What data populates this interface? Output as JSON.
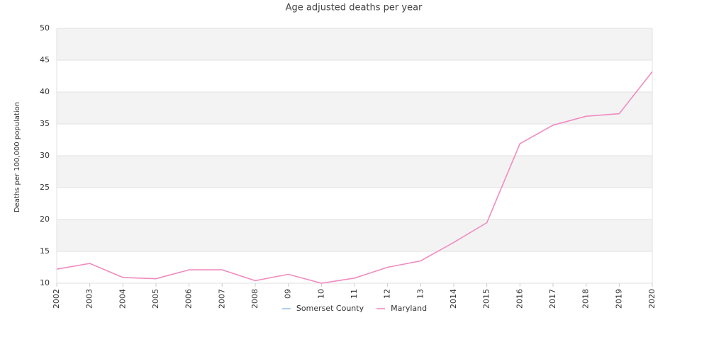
{
  "chart_data": {
    "type": "line",
    "title": "Age adjusted deaths per year",
    "y_label": "Deaths per 100,000 population",
    "categories": [
      "2002",
      "2003",
      "2004",
      "2005",
      "2006",
      "2007",
      "2008",
      "09",
      "10",
      "11",
      "12",
      "13",
      "2014",
      "2015",
      "2016",
      "2017",
      "2018",
      "2019",
      "2020"
    ],
    "series": [
      {
        "name": "Somerset County",
        "color": "#9cc4ea",
        "values": [
          null,
          null,
          null,
          null,
          null,
          null,
          null,
          null,
          null,
          null,
          null,
          null,
          null,
          null,
          null,
          null,
          null,
          null,
          null
        ]
      },
      {
        "name": "Maryland",
        "color": "#f08cc0",
        "values": [
          12.2,
          13.1,
          10.9,
          10.7,
          12.1,
          12.1,
          10.4,
          11.4,
          10.0,
          10.8,
          12.5,
          13.5,
          16.4,
          19.5,
          31.9,
          34.8,
          36.2,
          36.6,
          43.2
        ]
      }
    ],
    "ylim": [
      10,
      50
    ],
    "yticks": [
      10,
      15,
      20,
      25,
      30,
      35,
      40,
      45,
      50
    ],
    "grid": true,
    "legend": "bottom"
  }
}
